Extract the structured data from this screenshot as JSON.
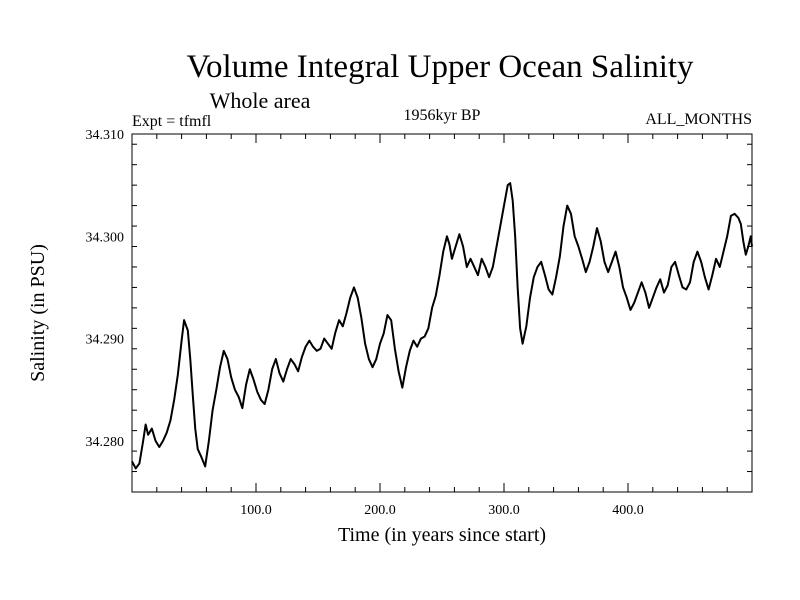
{
  "chart_data": {
    "type": "line",
    "title": "Volume Integral Upper Ocean Salinity",
    "subtitle": "Whole area",
    "header_left": "Expt = tfmfl",
    "header_center": "1956kyr BP",
    "header_right": "ALL_MONTHS",
    "xlabel": "Time (in years since start)",
    "ylabel": "Salinity (in PSU)",
    "xlim": [
      0,
      500
    ],
    "ylim": [
      34.275,
      34.31
    ],
    "xticks": [
      100,
      200,
      300,
      400
    ],
    "xtick_labels": [
      "100.0",
      "200.0",
      "300.0",
      "400.0"
    ],
    "yticks": [
      34.28,
      34.29,
      34.3,
      34.31
    ],
    "ytick_labels": [
      "34.280",
      "34.290",
      "34.300",
      "34.310"
    ],
    "grid": false,
    "series": [
      {
        "name": "Salinity",
        "color": "#000000",
        "points": [
          [
            0,
            34.278
          ],
          [
            3,
            34.2773
          ],
          [
            6,
            34.2778
          ],
          [
            9,
            34.28
          ],
          [
            11,
            34.2816
          ],
          [
            13,
            34.2806
          ],
          [
            16,
            34.2812
          ],
          [
            19,
            34.28
          ],
          [
            22,
            34.2794
          ],
          [
            25,
            34.28
          ],
          [
            28,
            34.2808
          ],
          [
            31,
            34.282
          ],
          [
            34,
            34.284
          ],
          [
            37,
            34.2865
          ],
          [
            40,
            34.2898
          ],
          [
            42,
            34.2918
          ],
          [
            45,
            34.2908
          ],
          [
            47,
            34.288
          ],
          [
            49,
            34.2845
          ],
          [
            51,
            34.2812
          ],
          [
            53,
            34.2792
          ],
          [
            56,
            34.2784
          ],
          [
            59,
            34.2775
          ],
          [
            62,
            34.28
          ],
          [
            65,
            34.283
          ],
          [
            68,
            34.285
          ],
          [
            71,
            34.2872
          ],
          [
            74,
            34.2888
          ],
          [
            77,
            34.288
          ],
          [
            80,
            34.2862
          ],
          [
            83,
            34.285
          ],
          [
            86,
            34.2843
          ],
          [
            89,
            34.2832
          ],
          [
            92,
            34.2855
          ],
          [
            95,
            34.287
          ],
          [
            98,
            34.286
          ],
          [
            101,
            34.2848
          ],
          [
            104,
            34.284
          ],
          [
            107,
            34.2836
          ],
          [
            110,
            34.285
          ],
          [
            113,
            34.287
          ],
          [
            116,
            34.288
          ],
          [
            119,
            34.2866
          ],
          [
            122,
            34.2858
          ],
          [
            125,
            34.287
          ],
          [
            128,
            34.288
          ],
          [
            131,
            34.2875
          ],
          [
            134,
            34.2868
          ],
          [
            137,
            34.2882
          ],
          [
            140,
            34.2892
          ],
          [
            143,
            34.2898
          ],
          [
            146,
            34.2892
          ],
          [
            149,
            34.2888
          ],
          [
            152,
            34.289
          ],
          [
            155,
            34.29
          ],
          [
            158,
            34.2895
          ],
          [
            161,
            34.289
          ],
          [
            164,
            34.2906
          ],
          [
            167,
            34.2918
          ],
          [
            170,
            34.2912
          ],
          [
            173,
            34.2925
          ],
          [
            176,
            34.294
          ],
          [
            179,
            34.295
          ],
          [
            182,
            34.294
          ],
          [
            185,
            34.292
          ],
          [
            188,
            34.2895
          ],
          [
            191,
            34.288
          ],
          [
            194,
            34.2872
          ],
          [
            197,
            34.288
          ],
          [
            200,
            34.2895
          ],
          [
            203,
            34.2905
          ],
          [
            206,
            34.2923
          ],
          [
            209,
            34.2918
          ],
          [
            212,
            34.289
          ],
          [
            215,
            34.2868
          ],
          [
            218,
            34.2852
          ],
          [
            221,
            34.2872
          ],
          [
            224,
            34.2888
          ],
          [
            227,
            34.2898
          ],
          [
            230,
            34.2892
          ],
          [
            233,
            34.29
          ],
          [
            236,
            34.2902
          ],
          [
            239,
            34.291
          ],
          [
            242,
            34.293
          ],
          [
            245,
            34.2942
          ],
          [
            248,
            34.2962
          ],
          [
            251,
            34.2985
          ],
          [
            254,
            34.3
          ],
          [
            256,
            34.2992
          ],
          [
            258,
            34.2978
          ],
          [
            261,
            34.299
          ],
          [
            264,
            34.3002
          ],
          [
            267,
            34.299
          ],
          [
            270,
            34.297
          ],
          [
            273,
            34.2978
          ],
          [
            276,
            34.297
          ],
          [
            279,
            34.2962
          ],
          [
            282,
            34.2978
          ],
          [
            285,
            34.297
          ],
          [
            288,
            34.296
          ],
          [
            291,
            34.297
          ],
          [
            294,
            34.299
          ],
          [
            297,
            34.301
          ],
          [
            300,
            34.303
          ],
          [
            303,
            34.305
          ],
          [
            305,
            34.3052
          ],
          [
            307,
            34.3035
          ],
          [
            309,
            34.3
          ],
          [
            311,
            34.295
          ],
          [
            313,
            34.291
          ],
          [
            315,
            34.2895
          ],
          [
            318,
            34.2912
          ],
          [
            321,
            34.294
          ],
          [
            324,
            34.296
          ],
          [
            327,
            34.297
          ],
          [
            330,
            34.2975
          ],
          [
            333,
            34.2962
          ],
          [
            336,
            34.2948
          ],
          [
            339,
            34.2943
          ],
          [
            342,
            34.296
          ],
          [
            345,
            34.298
          ],
          [
            348,
            34.301
          ],
          [
            351,
            34.303
          ],
          [
            354,
            34.3022
          ],
          [
            357,
            34.3
          ],
          [
            360,
            34.299
          ],
          [
            363,
            34.2978
          ],
          [
            366,
            34.2965
          ],
          [
            369,
            34.2975
          ],
          [
            372,
            34.299
          ],
          [
            375,
            34.3008
          ],
          [
            378,
            34.2995
          ],
          [
            381,
            34.2975
          ],
          [
            384,
            34.2965
          ],
          [
            387,
            34.2975
          ],
          [
            390,
            34.2985
          ],
          [
            393,
            34.297
          ],
          [
            396,
            34.295
          ],
          [
            399,
            34.294
          ],
          [
            402,
            34.2928
          ],
          [
            405,
            34.2935
          ],
          [
            408,
            34.2945
          ],
          [
            411,
            34.2955
          ],
          [
            414,
            34.2945
          ],
          [
            417,
            34.293
          ],
          [
            420,
            34.294
          ],
          [
            423,
            34.295
          ],
          [
            426,
            34.2958
          ],
          [
            429,
            34.2945
          ],
          [
            432,
            34.2952
          ],
          [
            435,
            34.297
          ],
          [
            438,
            34.2975
          ],
          [
            441,
            34.2962
          ],
          [
            444,
            34.295
          ],
          [
            447,
            34.2948
          ],
          [
            450,
            34.2955
          ],
          [
            453,
            34.2975
          ],
          [
            456,
            34.2985
          ],
          [
            459,
            34.2975
          ],
          [
            462,
            34.296
          ],
          [
            465,
            34.2948
          ],
          [
            468,
            34.2962
          ],
          [
            471,
            34.2978
          ],
          [
            474,
            34.297
          ],
          [
            477,
            34.2985
          ],
          [
            480,
            34.3
          ],
          [
            483,
            34.302
          ],
          [
            486,
            34.3022
          ],
          [
            489,
            34.3018
          ],
          [
            491,
            34.3012
          ],
          [
            493,
            34.2995
          ],
          [
            495,
            34.2982
          ],
          [
            497,
            34.299
          ],
          [
            499,
            34.3
          ],
          [
            500,
            34.299
          ]
        ]
      }
    ]
  }
}
